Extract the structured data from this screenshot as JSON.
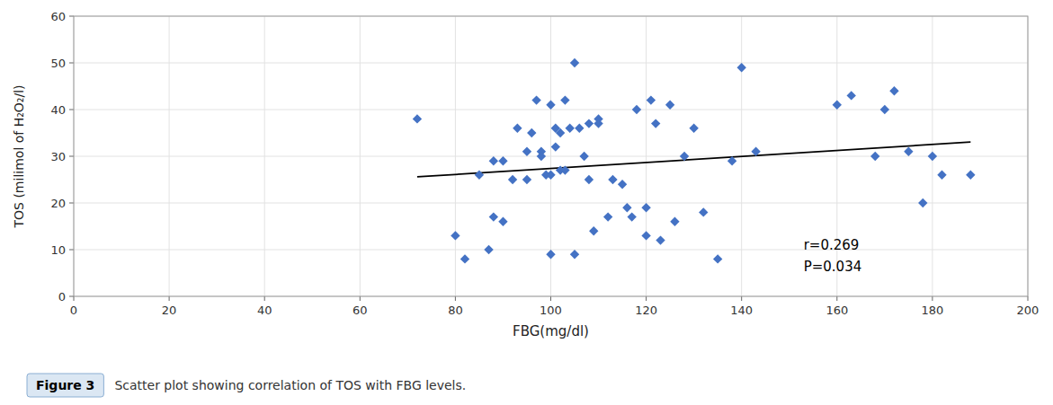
{
  "chart_data": {
    "type": "scatter",
    "title": "Figure 3",
    "subtitle": "Scatter plot showing correlation of TOS with FBG levels.",
    "x_label": "FBG(mg/dl)",
    "y_label": "TOS (milimol of H₂O₂/l)",
    "annotations": [
      "r=0.269",
      "P=0.034"
    ],
    "series": [
      {
        "type": "scatter",
        "color": "#4472C4",
        "marker": "diamond",
        "x": [
          72,
          80,
          82,
          85,
          87,
          88,
          88,
          90,
          90,
          92,
          93,
          95,
          95,
          96,
          97,
          98,
          98,
          99,
          100,
          100,
          100,
          101,
          101,
          102,
          102,
          103,
          103,
          104,
          105,
          105,
          106,
          107,
          108,
          108,
          109,
          110,
          110,
          112,
          113,
          115,
          116,
          117,
          118,
          120,
          120,
          121,
          122,
          123,
          125,
          126,
          128,
          130,
          132,
          135,
          138,
          140,
          143,
          160,
          163,
          168,
          170,
          172,
          175,
          178,
          180,
          182,
          188
        ],
        "values": [
          38,
          13,
          8,
          26,
          10,
          17,
          29,
          16,
          29,
          25,
          36,
          31,
          25,
          35,
          42,
          31,
          30,
          26,
          41,
          9,
          26,
          32,
          36,
          27,
          35,
          42,
          27,
          36,
          50,
          9,
          36,
          30,
          37,
          25,
          14,
          38,
          37,
          17,
          25,
          24,
          19,
          17,
          40,
          13,
          19,
          42,
          37,
          12,
          41,
          16,
          30,
          36,
          18,
          8,
          29,
          49,
          31,
          41,
          43,
          30,
          40,
          44,
          31,
          20,
          30,
          26,
          26
        ]
      },
      {
        "type": "line",
        "color": "black",
        "line_style": "solid",
        "x": [
          72,
          188
        ],
        "values": [
          25.5848,
          33.0418
        ]
      }
    ],
    "xlim": [
      0,
      200
    ],
    "ylim": [
      0,
      60
    ],
    "xticks": [
      0,
      20,
      40,
      60,
      80,
      100,
      120,
      140,
      160,
      180,
      200
    ],
    "yticks": [
      0,
      10,
      20,
      30,
      40,
      50,
      60
    ],
    "grid": true
  }
}
